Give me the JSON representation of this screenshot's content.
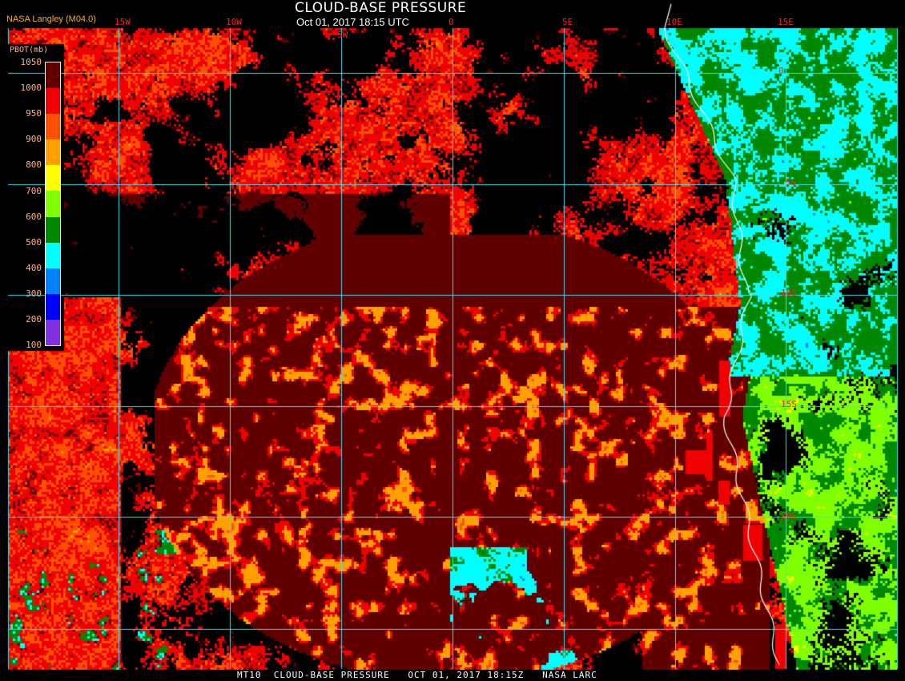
{
  "header": {
    "title": "CLOUD-BASE PRESSURE",
    "subtitle": "Oct 01, 2017 18:15 UTC",
    "credit": "NASA Langley (M04.0)"
  },
  "legend": {
    "title": "PBOT(mb)",
    "ticks": [
      "1050",
      "1000",
      "950",
      "900",
      "800",
      "700",
      "600",
      "500",
      "400",
      "300",
      "200",
      "100"
    ],
    "colors": [
      "#600000",
      "#f00000",
      "#ff5000",
      "#ffa000",
      "#ffff00",
      "#80ff00",
      "#008800",
      "#00ffff",
      "#0080ff",
      "#0000ff",
      "#8030e0"
    ]
  },
  "grid": {
    "line_color": "#40e0f0",
    "lon_labels": [
      "15W",
      "10W",
      "5W",
      "0",
      "5E",
      "10E",
      "15E"
    ],
    "lat_labels": [
      "0",
      "5S",
      "10S",
      "15S",
      "20S"
    ]
  },
  "coastline_color": "#ffffff",
  "footer": {
    "caption": "MT10  CLOUD-BASE PRESSURE   OCT 01, 2017 18:15Z   NASA LARC"
  }
}
